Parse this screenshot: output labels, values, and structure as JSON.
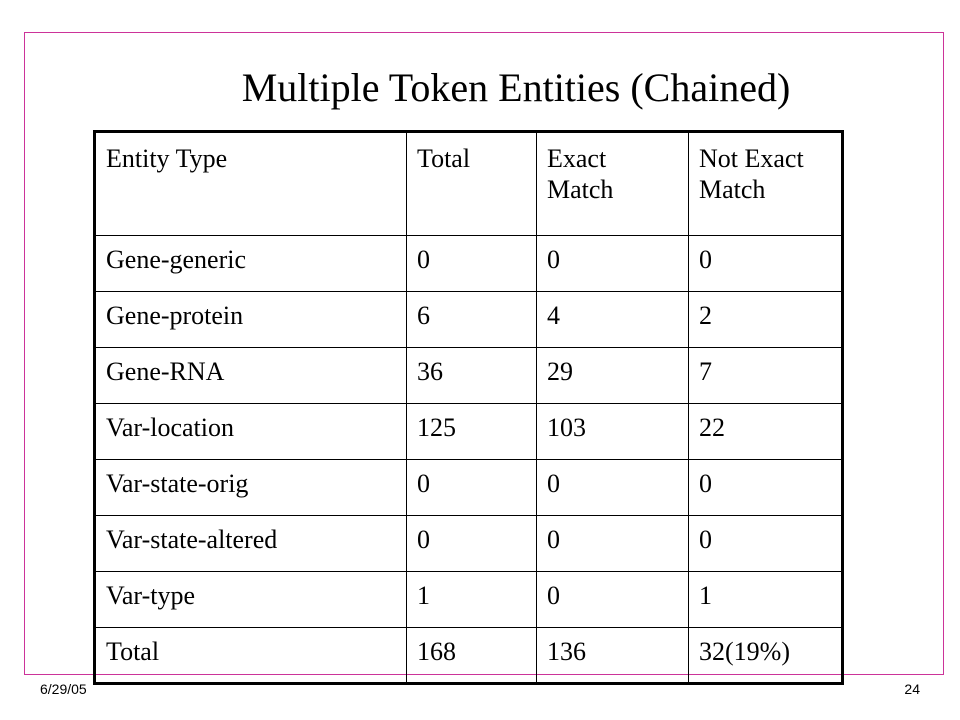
{
  "slide": {
    "title": "Multiple Token Entities (Chained)",
    "frame_color": "#cc3399"
  },
  "table": {
    "headers": [
      "Entity Type",
      "Total",
      "Exact Match",
      "Not Exact Match"
    ],
    "rows": [
      [
        "Gene-generic",
        "0",
        "0",
        "0"
      ],
      [
        "Gene-protein",
        "6",
        "4",
        "2"
      ],
      [
        "Gene-RNA",
        "36",
        "29",
        "7"
      ],
      [
        "Var-location",
        "125",
        "103",
        "22"
      ],
      [
        "Var-state-orig",
        "0",
        "0",
        "0"
      ],
      [
        "Var-state-altered",
        "0",
        "0",
        "0"
      ],
      [
        "Var-type",
        "1",
        "0",
        "1"
      ],
      [
        "Total",
        "168",
        "136",
        "32(19%)"
      ]
    ]
  },
  "footer": {
    "date": "6/29/05",
    "page_number": "24"
  }
}
